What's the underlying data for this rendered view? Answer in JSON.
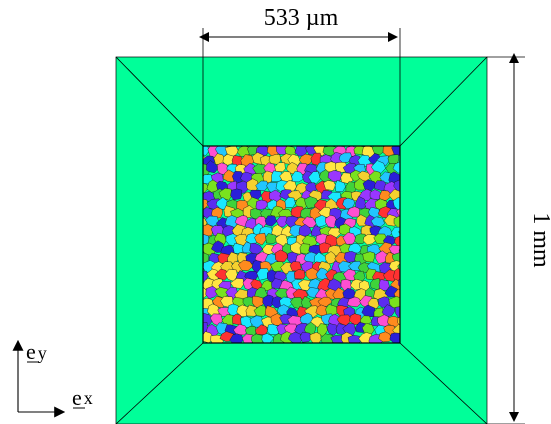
{
  "figure": {
    "dimensions": {
      "width_label": "533 µm",
      "height_label": "1 mm"
    },
    "axes": {
      "x_symbol": "e",
      "x_subscript": "x",
      "y_symbol": "e",
      "y_subscript": "y"
    },
    "colors": {
      "outer_domain": "#00FF99",
      "outline": "#000000",
      "grain_palette": [
        "#2a1fd8",
        "#5b2cf0",
        "#18e8ff",
        "#21c6ff",
        "#ffe642",
        "#f4d12f",
        "#79e21e",
        "#3fd33a",
        "#ff8b1e",
        "#ff3131",
        "#ff4fd2",
        "#9a36ff"
      ]
    }
  }
}
